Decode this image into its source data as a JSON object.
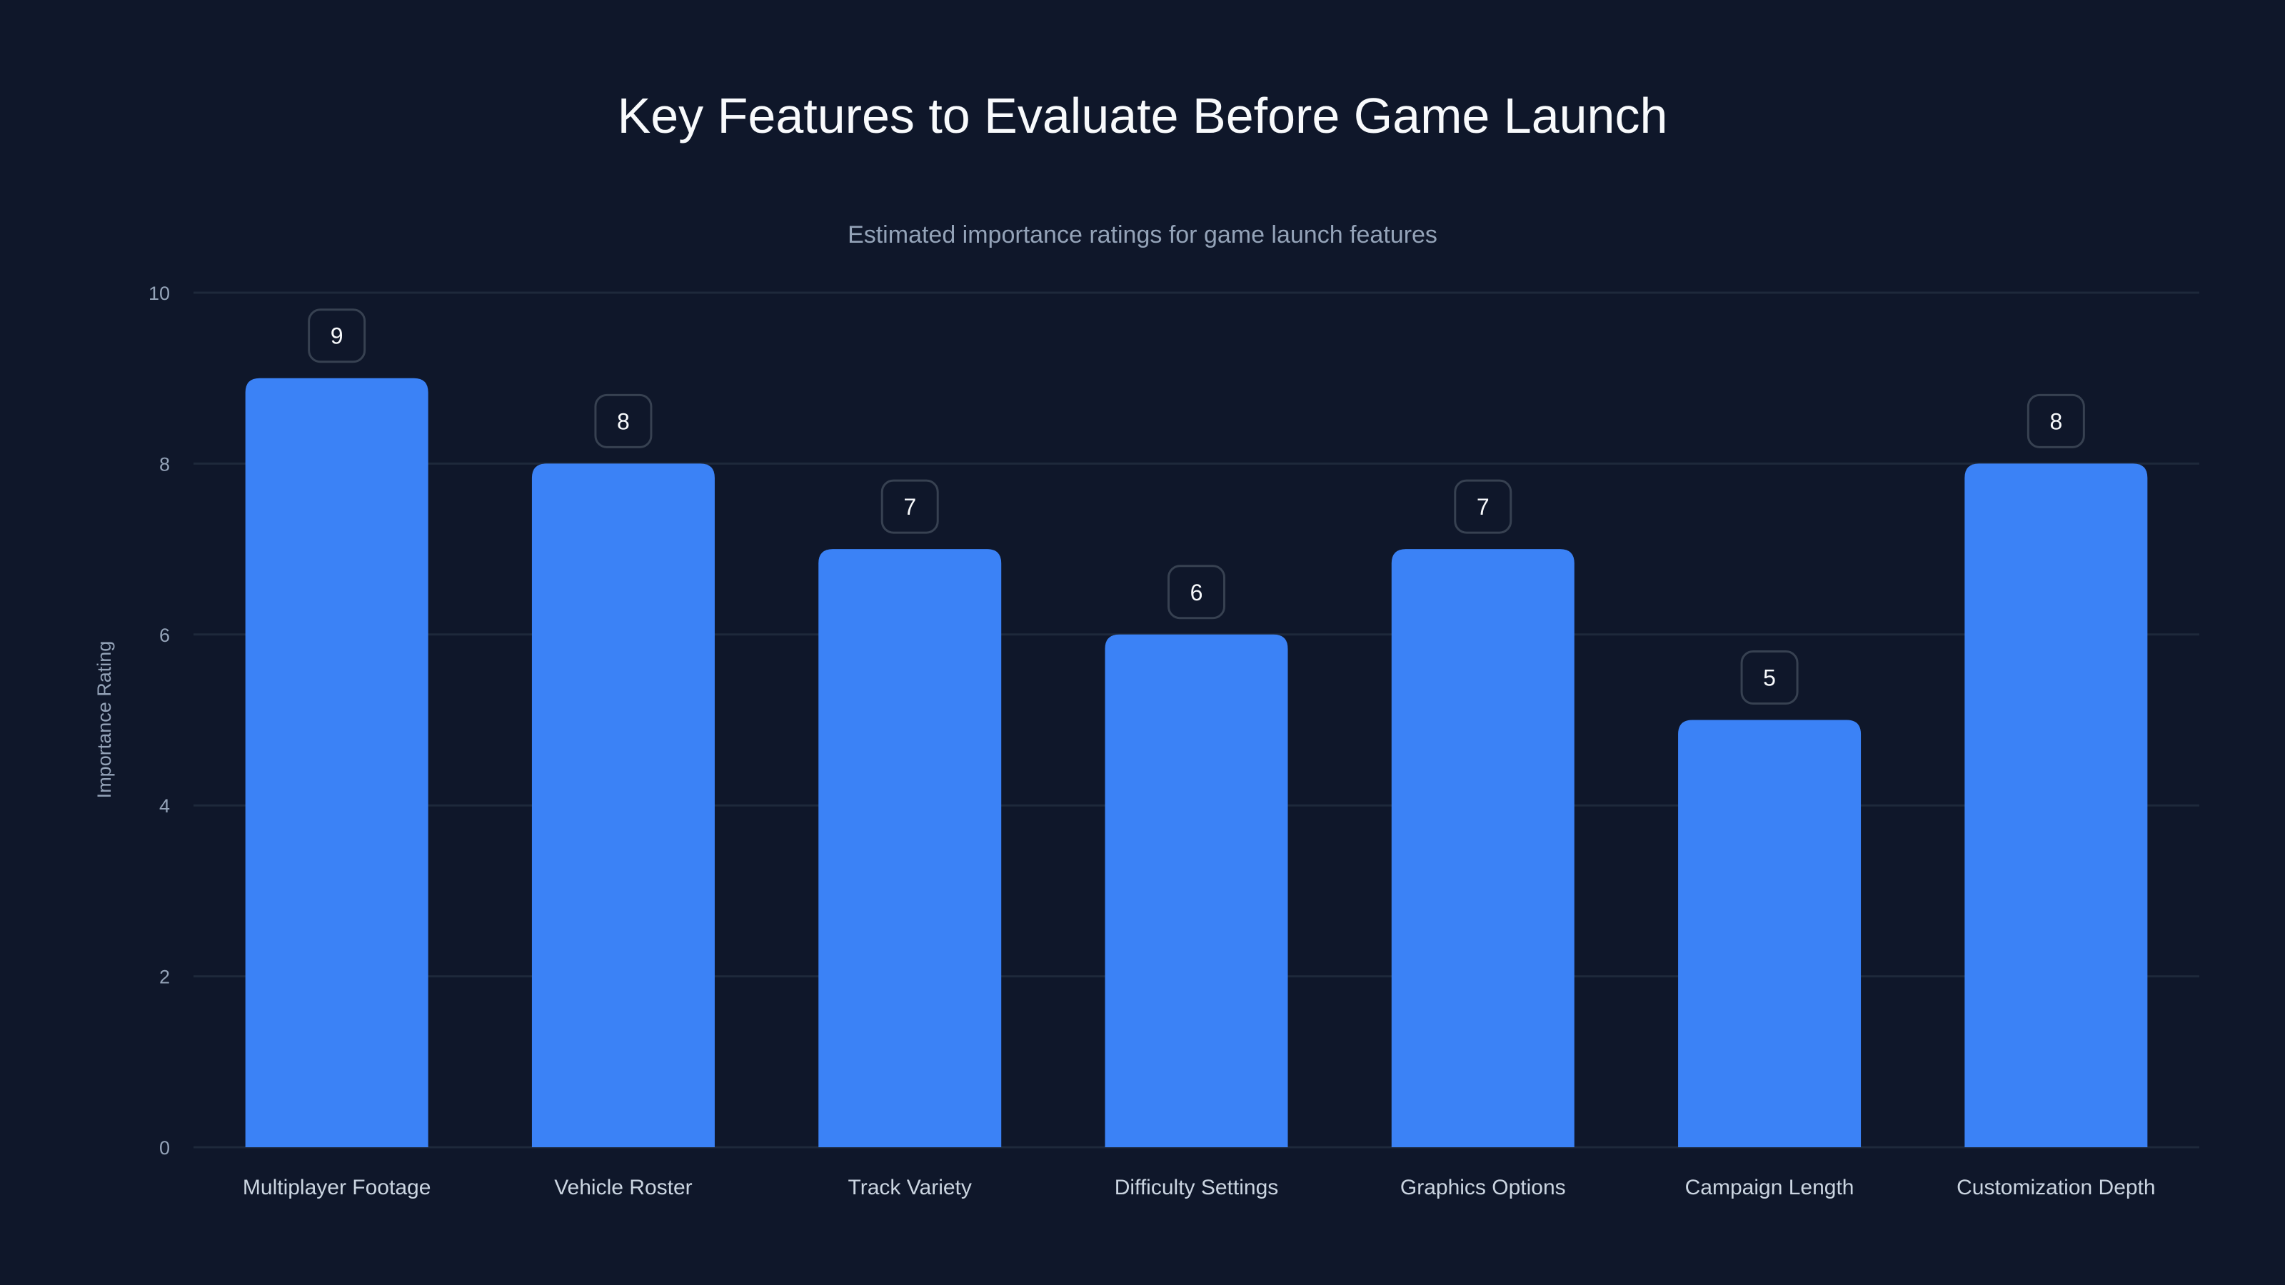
{
  "chart_data": {
    "type": "bar",
    "title": "Key Features to Evaluate Before Game Launch",
    "subtitle": "Estimated importance ratings for game launch features",
    "xlabel": "",
    "ylabel": "Importance Rating",
    "ylim": [
      0,
      10
    ],
    "yticks": [
      0,
      2,
      4,
      6,
      8,
      10
    ],
    "grid": true,
    "categories": [
      "Multiplayer Footage",
      "Vehicle Roster",
      "Track Variety",
      "Difficulty Settings",
      "Graphics Options",
      "Campaign Length",
      "Customization Depth"
    ],
    "values": [
      9,
      8,
      7,
      6,
      7,
      5,
      8
    ],
    "colors": {
      "bar": "#3b82f6",
      "background": "#0f172a",
      "grid": "#1e293b"
    }
  }
}
